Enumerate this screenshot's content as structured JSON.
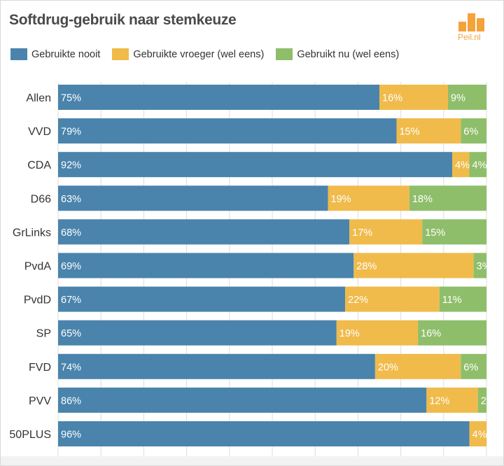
{
  "title": "Softdrug-gebruik naar stemkeuze",
  "logo": {
    "text": "Peil.nl"
  },
  "colors": {
    "nooit": "#4a84ac",
    "vroeger": "#f0bb4b",
    "nu": "#8fbe6a"
  },
  "chart_data": {
    "type": "bar",
    "orientation": "horizontal",
    "stacked": true,
    "title": "Softdrug-gebruik naar stemkeuze",
    "categories": [
      "Allen",
      "VVD",
      "CDA",
      "D66",
      "GrLinks",
      "PvdA",
      "PvdD",
      "SP",
      "FVD",
      "PVV",
      "50PLUS"
    ],
    "series": [
      {
        "name": "Gebruikte nooit",
        "values": [
          75,
          79,
          92,
          63,
          68,
          69,
          67,
          65,
          74,
          86,
          96
        ]
      },
      {
        "name": "Gebruikte vroeger (wel eens)",
        "values": [
          16,
          15,
          4,
          19,
          17,
          28,
          22,
          19,
          20,
          12,
          4
        ]
      },
      {
        "name": "Gebruikt nu (wel eens)",
        "values": [
          9,
          6,
          4,
          18,
          15,
          3,
          11,
          16,
          6,
          2,
          0
        ]
      }
    ],
    "value_suffix": "%",
    "xlim": [
      0,
      100
    ],
    "grid": true,
    "legend_position": "top"
  }
}
